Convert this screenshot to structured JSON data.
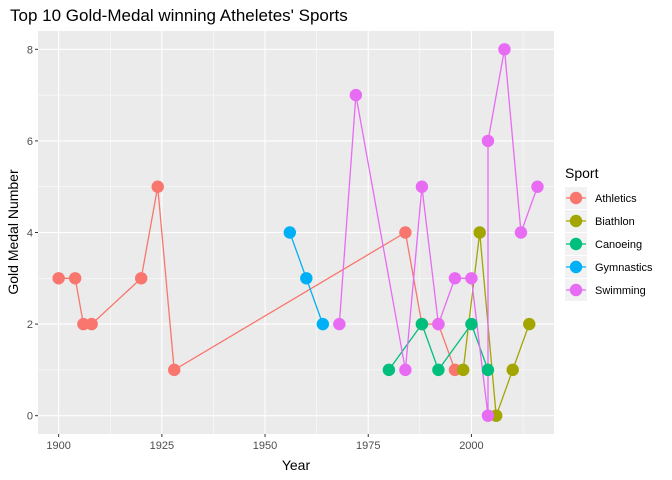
{
  "chart_data": {
    "type": "line",
    "title": "Top 10 Gold-Medal winning Atheletes' Sports",
    "xlabel": "Year",
    "ylabel": "Gold Medal Number",
    "xlim": [
      1895,
      2020
    ],
    "ylim": [
      -0.4,
      8.4
    ],
    "xticks": [
      1900,
      1925,
      1950,
      1975,
      2000
    ],
    "yticks": [
      0,
      2,
      4,
      6,
      8
    ],
    "grid": true,
    "legend_title": "Sport",
    "legend_position": "right",
    "series": [
      {
        "name": "Athletics",
        "color": "#F8766D",
        "points": [
          [
            1900,
            3
          ],
          [
            1904,
            3
          ],
          [
            1906,
            2
          ],
          [
            1908,
            2
          ],
          [
            1920,
            3
          ],
          [
            1924,
            5
          ],
          [
            1928,
            1
          ],
          [
            1984,
            4
          ],
          [
            1988,
            2
          ],
          [
            1992,
            2
          ],
          [
            1996,
            1
          ]
        ]
      },
      {
        "name": "Biathlon",
        "color": "#A3A500",
        "points": [
          [
            1998,
            1
          ],
          [
            2002,
            4
          ],
          [
            2006,
            0
          ],
          [
            2010,
            1
          ],
          [
            2014,
            2
          ]
        ]
      },
      {
        "name": "Canoeing",
        "color": "#00BF7D",
        "points": [
          [
            1980,
            1
          ],
          [
            1988,
            2
          ],
          [
            1992,
            1
          ],
          [
            2000,
            2
          ],
          [
            2004,
            1
          ]
        ]
      },
      {
        "name": "Gymnastics",
        "color": "#00B0F6",
        "points": [
          [
            1956,
            4
          ],
          [
            1960,
            3
          ],
          [
            1964,
            2
          ]
        ]
      },
      {
        "name": "Swimming",
        "color": "#E76BF3",
        "points": [
          [
            1968,
            2
          ],
          [
            1972,
            7
          ],
          [
            1984,
            1
          ],
          [
            1988,
            5
          ],
          [
            1992,
            2
          ],
          [
            1996,
            3
          ],
          [
            2000,
            3
          ],
          [
            2004,
            0
          ],
          [
            2004,
            6
          ],
          [
            2008,
            8
          ],
          [
            2012,
            4
          ],
          [
            2016,
            5
          ]
        ]
      }
    ]
  }
}
